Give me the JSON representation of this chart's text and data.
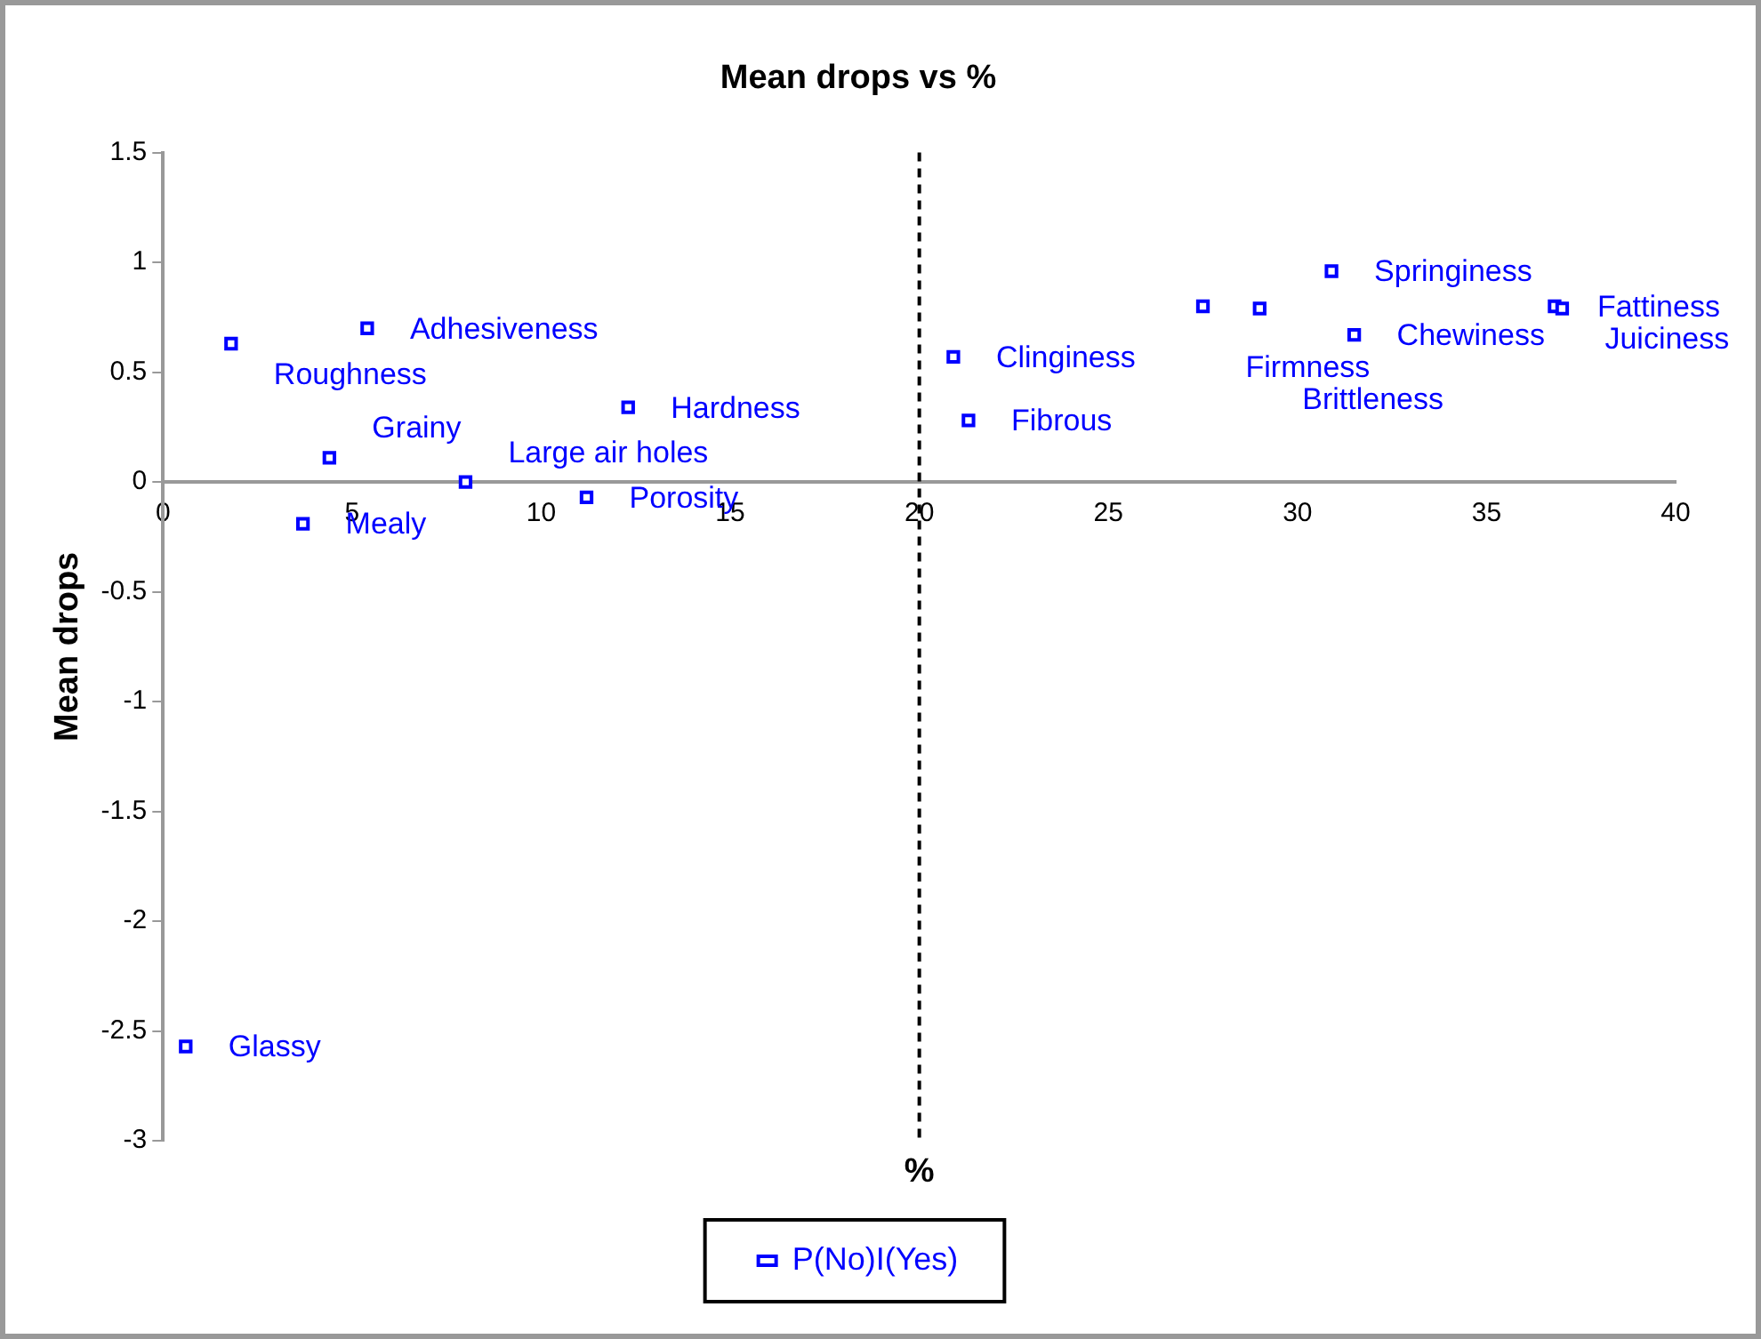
{
  "chart_data": {
    "type": "scatter",
    "title": "Mean drops vs %",
    "xlabel": "%",
    "ylabel": "Mean drops",
    "series": [
      {
        "name": "P(No)I(Yes)",
        "color": "#0000ff",
        "x": [
          1.8,
          5.4,
          12.3,
          4.4,
          8.0,
          11.2,
          3.7,
          0.6,
          20.9,
          21.3,
          27.5,
          29.0,
          30.9,
          31.5,
          36.8,
          37.0
        ],
        "values": [
          0.63,
          0.7,
          0.34,
          0.11,
          0.0,
          -0.07,
          -0.19,
          -2.57,
          0.57,
          0.28,
          0.8,
          0.79,
          0.96,
          0.67,
          0.8,
          0.79
        ]
      }
    ],
    "annotations": [
      {
        "text": "Roughness",
        "x": 1.8,
        "y": 0.63
      },
      {
        "text": "Adhesiveness",
        "x": 5.4,
        "y": 0.7
      },
      {
        "text": "Hardness",
        "x": 12.3,
        "y": 0.34
      },
      {
        "text": "Grainy",
        "x": 4.4,
        "y": 0.11
      },
      {
        "text": "Large air holes",
        "x": 8.0,
        "y": 0.0
      },
      {
        "text": "Porosity",
        "x": 11.2,
        "y": -0.07
      },
      {
        "text": "Mealy",
        "x": 3.7,
        "y": -0.19
      },
      {
        "text": "Glassy",
        "x": 0.6,
        "y": -2.57
      },
      {
        "text": "Clinginess",
        "x": 20.9,
        "y": 0.57
      },
      {
        "text": "Fibrous",
        "x": 21.3,
        "y": 0.28
      },
      {
        "text": "Firmness",
        "x": 27.5,
        "y": 0.8
      },
      {
        "text": "Brittleness",
        "x": 29.0,
        "y": 0.79
      },
      {
        "text": "Springiness",
        "x": 30.9,
        "y": 0.96
      },
      {
        "text": "Chewiness",
        "x": 31.5,
        "y": 0.67
      },
      {
        "text": "Fattiness",
        "x": 36.8,
        "y": 0.8
      },
      {
        "text": "Juiciness",
        "x": 37.0,
        "y": 0.79
      }
    ],
    "xlim": [
      0,
      40
    ],
    "xticks": [
      0,
      5,
      10,
      15,
      20,
      25,
      30,
      35,
      40
    ],
    "ylim": [
      -3,
      1.5
    ],
    "yticks": [
      -3,
      -2.5,
      -2,
      -1.5,
      -1,
      -0.5,
      0,
      0.5,
      1,
      1.5
    ],
    "ref_lines": [
      {
        "axis": "x",
        "value": 20,
        "color": "#000000",
        "line_style": "dashed"
      }
    ],
    "marker": "square",
    "grid": false,
    "legend": "bottom"
  }
}
